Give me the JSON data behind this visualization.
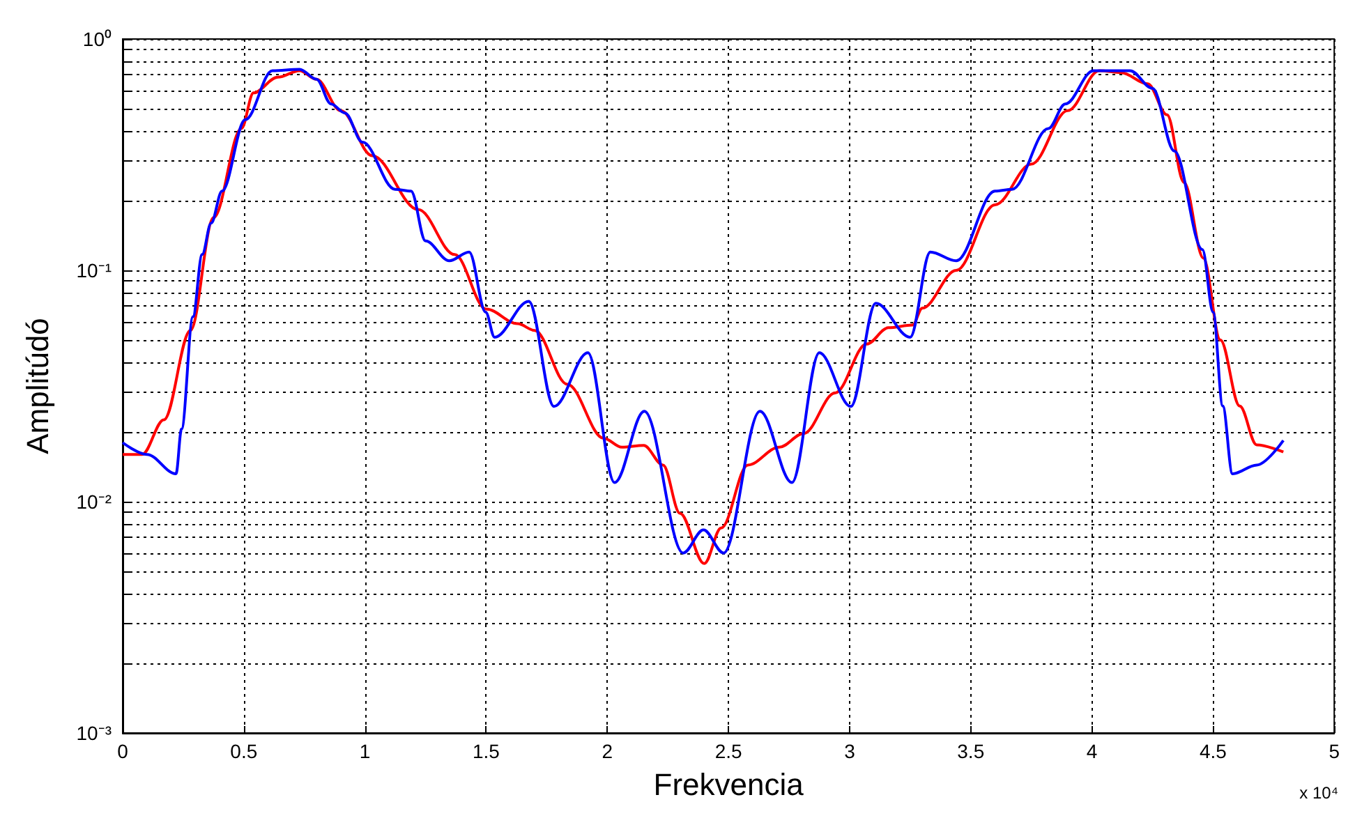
{
  "chart_data": {
    "type": "line",
    "xlabel": "Frekvencia",
    "ylabel": "Amplitúdó",
    "log": "y",
    "grid": true,
    "marker": "none",
    "line_style": "solid",
    "xlim": [
      0,
      5
    ],
    "xticks": [
      0,
      0.5,
      1,
      1.5,
      2,
      2.5,
      3,
      3.5,
      4,
      4.5,
      5
    ],
    "ylim": [
      0.001,
      1
    ],
    "yticks": [
      {
        "value": 0.001,
        "label": "10⁻³"
      },
      {
        "value": 0.002,
        "label": null
      },
      {
        "value": 0.003,
        "label": null
      },
      {
        "value": 0.004,
        "label": null
      },
      {
        "value": 0.005,
        "label": null
      },
      {
        "value": 0.006,
        "label": null
      },
      {
        "value": 0.007,
        "label": null
      },
      {
        "value": 0.008,
        "label": null
      },
      {
        "value": 0.009,
        "label": null
      },
      {
        "value": 0.01,
        "label": "10⁻²"
      },
      {
        "value": 0.02,
        "label": null
      },
      {
        "value": 0.03,
        "label": null
      },
      {
        "value": 0.04,
        "label": null
      },
      {
        "value": 0.05,
        "label": null
      },
      {
        "value": 0.06,
        "label": null
      },
      {
        "value": 0.07,
        "label": null
      },
      {
        "value": 0.08,
        "label": null
      },
      {
        "value": 0.09,
        "label": null
      },
      {
        "value": 0.1,
        "label": "10⁻¹"
      },
      {
        "value": 0.2,
        "label": null
      },
      {
        "value": 0.3,
        "label": null
      },
      {
        "value": 0.4,
        "label": null
      },
      {
        "value": 0.5,
        "label": null
      },
      {
        "value": 0.6,
        "label": null
      },
      {
        "value": 0.7,
        "label": null
      },
      {
        "value": 0.8,
        "label": null
      },
      {
        "value": 0.9,
        "label": null
      },
      {
        "value": 1,
        "label": "10⁰"
      }
    ],
    "annotations": [
      "x 10⁴"
    ],
    "series": [
      {
        "color": "#ff0000",
        "x": [
          0,
          0.08,
          0.17,
          0.28,
          0.375,
          0.49,
          0.54,
          0.64,
          0.73,
          0.8,
          0.9,
          1.03,
          1.22,
          1.37,
          1.5,
          1.63,
          1.7,
          1.835,
          1.985,
          2.06,
          2.15,
          2.23,
          2.3,
          2.4,
          2.47,
          2.58,
          2.71,
          2.81,
          2.94,
          3.07,
          3.16,
          3.26,
          3.3,
          3.44,
          3.6,
          3.75,
          3.9,
          4.03,
          4.12,
          4.23,
          4.31,
          4.38,
          4.46,
          4.53,
          4.61,
          4.68,
          4.79
        ],
        "values": [
          0.016,
          0.016,
          0.0226,
          0.055,
          0.169,
          0.41,
          0.585,
          0.684,
          0.73,
          0.67,
          0.49,
          0.313,
          0.183,
          0.117,
          0.068,
          0.0588,
          0.055,
          0.0322,
          0.0188,
          0.0172,
          0.0175,
          0.0144,
          0.0089,
          0.0054,
          0.0077,
          0.0144,
          0.0172,
          0.0197,
          0.0295,
          0.048,
          0.0565,
          0.058,
          0.0687,
          0.1,
          0.192,
          0.288,
          0.49,
          0.73,
          0.716,
          0.64,
          0.47,
          0.24,
          0.113,
          0.05,
          0.0259,
          0.0176,
          0.0164
        ]
      },
      {
        "color": "#0000ff",
        "x": [
          0,
          0.1,
          0.22,
          0.243,
          0.29,
          0.328,
          0.365,
          0.41,
          0.506,
          0.618,
          0.73,
          0.8,
          0.86,
          0.917,
          0.99,
          1.124,
          1.19,
          1.25,
          1.348,
          1.43,
          1.498,
          1.535,
          1.676,
          1.78,
          1.92,
          2.03,
          2.153,
          2.313,
          2.397,
          2.48,
          2.63,
          2.762,
          2.875,
          3.005,
          3.108,
          3.25,
          3.333,
          3.44,
          3.6,
          3.67,
          3.82,
          3.89,
          4.006,
          4.157,
          4.25,
          4.34,
          4.456,
          4.5,
          4.54,
          4.58,
          4.68,
          4.79
        ],
        "values": [
          0.018,
          0.016,
          0.0132,
          0.0206,
          0.063,
          0.117,
          0.16,
          0.22,
          0.448,
          0.73,
          0.74,
          0.67,
          0.524,
          0.479,
          0.358,
          0.224,
          0.22,
          0.134,
          0.11,
          0.12,
          0.066,
          0.0514,
          0.0735,
          0.0258,
          0.044,
          0.0121,
          0.0246,
          0.006,
          0.00755,
          0.006,
          0.0246,
          0.0121,
          0.044,
          0.0258,
          0.072,
          0.0514,
          0.12,
          0.11,
          0.22,
          0.224,
          0.41,
          0.524,
          0.73,
          0.73,
          0.612,
          0.328,
          0.123,
          0.066,
          0.0259,
          0.0132,
          0.0144,
          0.0184
        ]
      }
    ]
  }
}
